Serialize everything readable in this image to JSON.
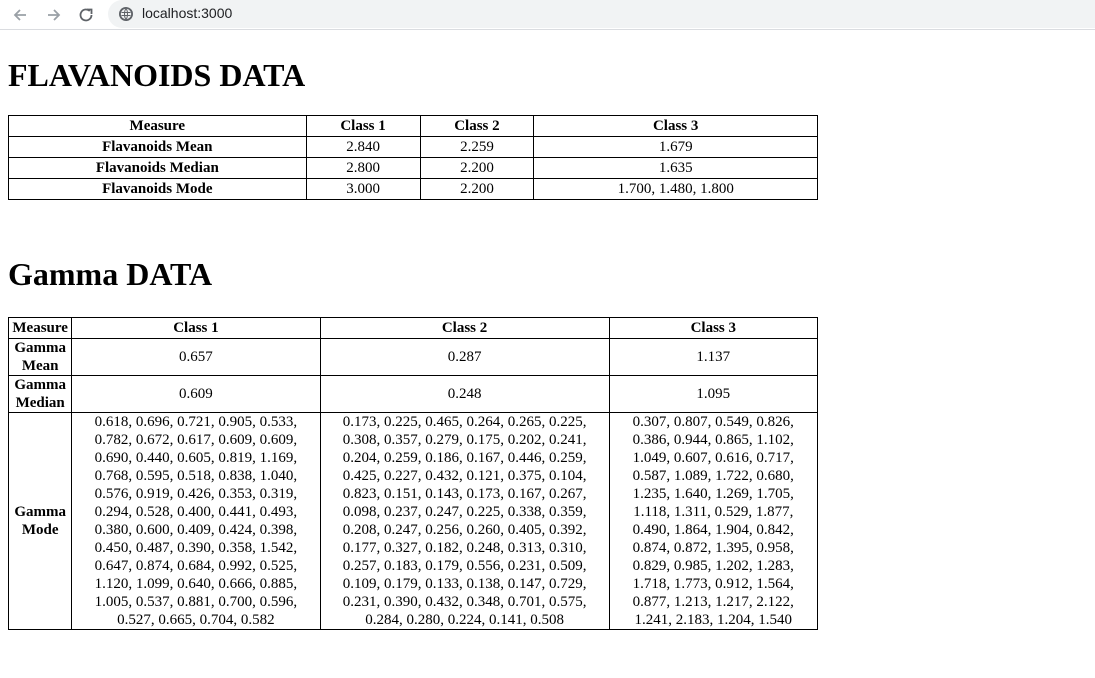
{
  "browser": {
    "url": "localhost:3000",
    "icons": {
      "back": "arrow-left-icon",
      "forward": "arrow-right-icon",
      "reload": "reload-icon",
      "site": "site-info-icon"
    }
  },
  "flavanoids": {
    "heading": "FLAVANOIDS DATA",
    "columns": [
      "Measure",
      "Class 1",
      "Class 2",
      "Class 3"
    ],
    "rows": [
      [
        "Flavanoids Mean",
        "2.840",
        "2.259",
        "1.679"
      ],
      [
        "Flavanoids Median",
        "2.800",
        "2.200",
        "1.635"
      ],
      [
        "Flavanoids Mode",
        "3.000",
        "2.200",
        "1.700, 1.480, 1.800"
      ]
    ]
  },
  "gamma": {
    "heading": "Gamma DATA",
    "columns": [
      "Measure",
      "Class 1",
      "Class 2",
      "Class 3"
    ],
    "rows": [
      [
        "Gamma Mean",
        "0.657",
        "0.287",
        "1.137"
      ],
      [
        "Gamma Median",
        "0.609",
        "0.248",
        "1.095"
      ],
      [
        "Gamma Mode",
        "0.618, 0.696, 0.721, 0.905, 0.533, 0.782, 0.672, 0.617, 0.609, 0.609, 0.690, 0.440, 0.605, 0.819, 1.169, 0.768, 0.595, 0.518, 0.838, 1.040, 0.576, 0.919, 0.426, 0.353, 0.319, 0.294, 0.528, 0.400, 0.441, 0.493, 0.380, 0.600, 0.409, 0.424, 0.398, 0.450, 0.487, 0.390, 0.358, 1.542, 0.647, 0.874, 0.684, 0.992, 0.525, 1.120, 1.099, 0.640, 0.666, 0.885, 1.005, 0.537, 0.881, 0.700, 0.596, 0.527, 0.665, 0.704, 0.582",
        "0.173, 0.225, 0.465, 0.264, 0.265, 0.225, 0.308, 0.357, 0.279, 0.175, 0.202, 0.241, 0.204, 0.259, 0.186, 0.167, 0.446, 0.259, 0.425, 0.227, 0.432, 0.121, 0.375, 0.104, 0.823, 0.151, 0.143, 0.173, 0.167, 0.267, 0.098, 0.237, 0.247, 0.225, 0.338, 0.359, 0.208, 0.247, 0.256, 0.260, 0.405, 0.392, 0.177, 0.327, 0.182, 0.248, 0.313, 0.310, 0.257, 0.183, 0.179, 0.556, 0.231, 0.509, 0.109, 0.179, 0.133, 0.138, 0.147, 0.729, 0.231, 0.390, 0.432, 0.348, 0.701, 0.575, 0.284, 0.280, 0.224, 0.141, 0.508",
        "0.307, 0.807, 0.549, 0.826, 0.386, 0.944, 0.865, 1.102, 1.049, 0.607, 0.616, 0.717, 0.587, 1.089, 1.722, 0.680, 1.235, 1.640, 1.269, 1.705, 1.118, 1.311, 0.529, 1.877, 0.490, 1.864, 1.904, 0.842, 0.874, 0.872, 1.395, 0.958, 0.829, 0.985, 1.202, 1.283, 1.718, 1.773, 0.912, 1.564, 0.877, 1.213, 1.217, 2.122, 1.241, 2.183, 1.204, 1.540"
      ]
    ]
  }
}
